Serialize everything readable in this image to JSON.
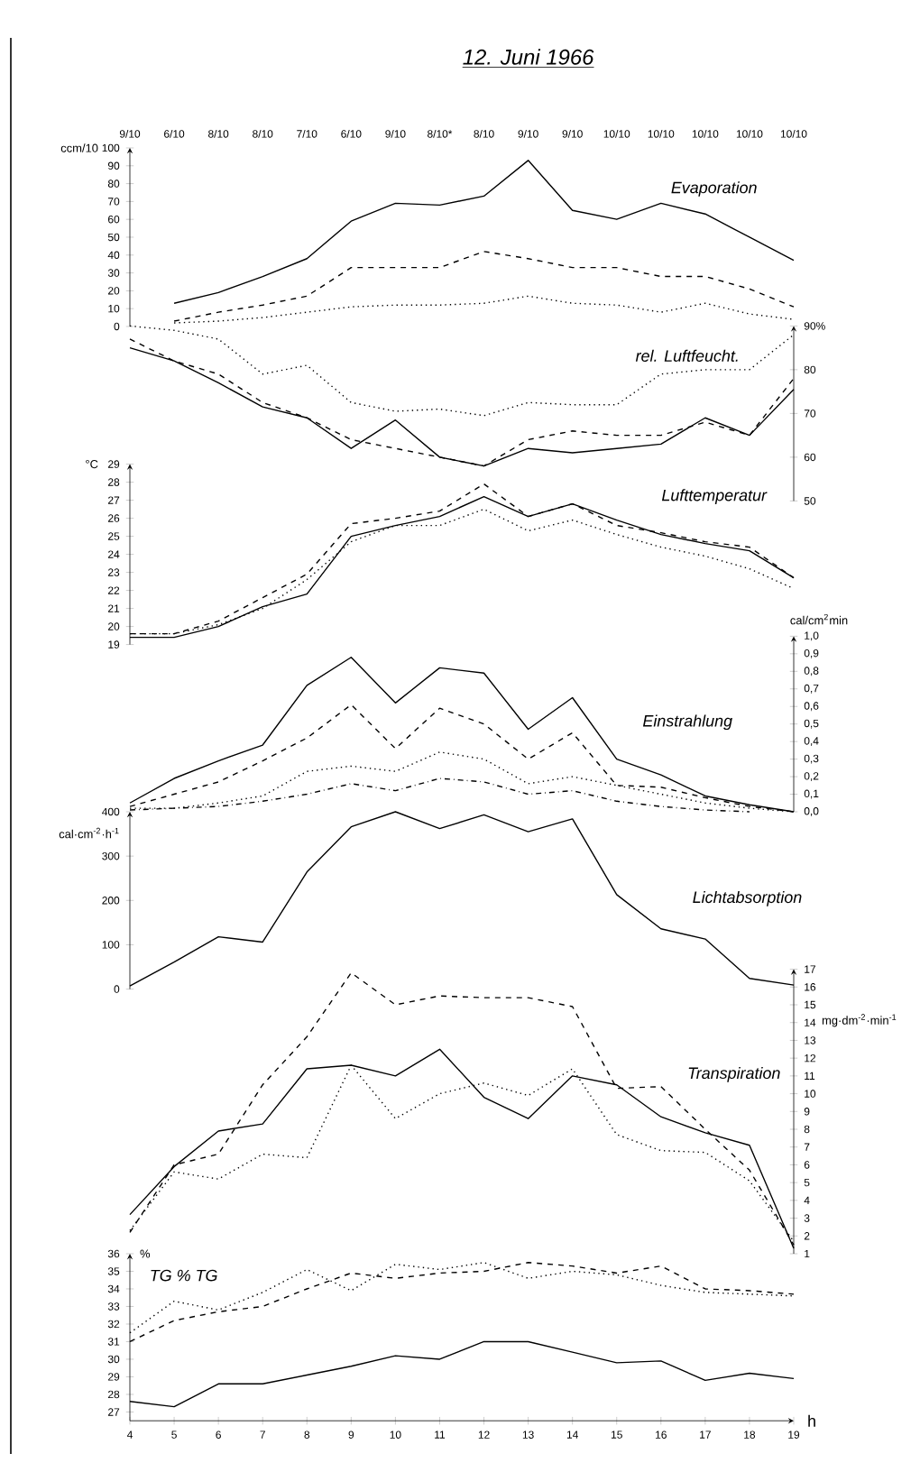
{
  "chart_data": [
    {
      "type": "line",
      "title": "12. Juni 1966",
      "subtitle": "Evaporation",
      "ylabel": "ccm/10",
      "categories": [
        "9/10",
        "6/10",
        "8/10",
        "8/10",
        "7/10",
        "6/10",
        "9/10",
        "8/10*",
        "8/10",
        "9/10",
        "9/10",
        "10/10",
        "10/10",
        "10/10",
        "10/10",
        "10/10"
      ],
      "ylim": [
        0,
        100
      ],
      "yticks": [
        0,
        10,
        20,
        30,
        40,
        50,
        60,
        70,
        80,
        90,
        100
      ],
      "series": [
        {
          "color": "#000000",
          "line_style": "solid",
          "values": [
            null,
            13,
            19,
            28,
            38,
            59,
            69,
            68,
            73,
            93,
            65,
            60,
            69,
            63,
            50,
            37
          ]
        },
        {
          "color": "#000000",
          "line_style": "dashed",
          "values": [
            null,
            3,
            8,
            12,
            17,
            33,
            33,
            33,
            42,
            38,
            33,
            33,
            28,
            28,
            21,
            11
          ]
        },
        {
          "color": "#000000",
          "line_style": "dotted",
          "values": [
            null,
            2,
            3,
            5,
            8,
            11,
            12,
            12,
            13,
            17,
            13,
            12,
            8,
            13,
            7,
            4
          ]
        }
      ]
    },
    {
      "type": "line",
      "title": "rel. Luftfeucht.",
      "x": [
        4,
        5,
        6,
        7,
        8,
        9,
        10,
        11,
        12,
        13,
        14,
        15,
        16,
        17,
        18,
        19
      ],
      "xlim": [
        4,
        19
      ],
      "tick_labels": "y",
      "y2lim": [
        50,
        90
      ],
      "y2ticks": [
        50,
        60,
        70,
        80,
        {
          "value": 90,
          "label": "90%"
        }
      ],
      "series": [
        {
          "color": "#000000",
          "line_style": "dotted",
          "axis": "y2",
          "values": [
            90,
            89,
            87,
            79,
            81,
            72.5,
            70.5,
            71,
            69.5,
            72.5,
            72,
            72,
            79,
            80,
            80,
            88
          ]
        },
        {
          "color": "#000000",
          "line_style": "solid",
          "axis": "y2",
          "values": [
            85,
            82,
            77,
            71.5,
            69,
            62,
            68.5,
            60,
            58,
            62,
            61,
            62,
            63,
            69,
            65,
            75.5
          ]
        },
        {
          "color": "#000000",
          "line_style": "dashed",
          "axis": "y2",
          "values": [
            87,
            82,
            79,
            72.5,
            69,
            64,
            62,
            60,
            58,
            64,
            66,
            65,
            65,
            68,
            65,
            78
          ]
        }
      ]
    },
    {
      "type": "line",
      "title": "Lufttemperatur",
      "ylabel": "°C",
      "x": [
        4,
        5,
        6,
        7,
        8,
        9,
        10,
        11,
        12,
        13,
        14,
        15,
        16,
        17,
        18,
        19
      ],
      "xlim": [
        4,
        19
      ],
      "tick_labels": "y",
      "ylim": [
        19,
        29
      ],
      "yticks": [
        19,
        20,
        21,
        22,
        23,
        24,
        25,
        26,
        27,
        28,
        29
      ],
      "series": [
        {
          "color": "#000000",
          "line_style": "solid",
          "values": [
            19.4,
            19.4,
            20,
            21.1,
            21.8,
            25,
            25.6,
            26.1,
            27.2,
            26.1,
            26.8,
            25.9,
            25.1,
            24.6,
            24.2,
            22.7
          ]
        },
        {
          "color": "#000000",
          "line_style": "dashed",
          "values": [
            19.6,
            19.6,
            20.3,
            21.6,
            22.9,
            25.7,
            26,
            26.4,
            27.9,
            26.1,
            26.8,
            25.6,
            25.2,
            24.7,
            24.4,
            22.7
          ]
        },
        {
          "color": "#000000",
          "line_style": "dotted",
          "values": [
            19.6,
            19.6,
            20.1,
            21,
            22.6,
            24.7,
            25.6,
            25.6,
            26.5,
            25.3,
            25.9,
            25.1,
            24.4,
            23.9,
            23.2,
            22.1
          ]
        }
      ]
    },
    {
      "type": "line",
      "title": "Einstrahlung",
      "y2label": "cal/cm$^{2}$min",
      "x": [
        4,
        5,
        6,
        7,
        8,
        9,
        10,
        11,
        12,
        13,
        14,
        15,
        16,
        17,
        18,
        19
      ],
      "xlim": [
        4,
        19
      ],
      "tick_labels": "y",
      "y2lim": [
        0,
        1
      ],
      "y2ticks": [
        {
          "value": 0,
          "label": "0,0"
        },
        {
          "value": 0.1,
          "label": "0,1"
        },
        {
          "value": 0.2,
          "label": "0,2"
        },
        {
          "value": 0.3,
          "label": "0,3"
        },
        {
          "value": 0.4,
          "label": "0,4"
        },
        {
          "value": 0.5,
          "label": "0,5"
        },
        {
          "value": 0.6,
          "label": "0,6"
        },
        {
          "value": 0.7,
          "label": "0,7"
        },
        {
          "value": 0.8,
          "label": "0,8"
        },
        {
          "value": 0.9,
          "label": "0,9"
        },
        {
          "value": 1,
          "label": "1,0"
        }
      ],
      "series": [
        {
          "color": "#000000",
          "line_style": "solid",
          "axis": "y2",
          "values": [
            0.05,
            0.19,
            0.29,
            0.38,
            0.72,
            0.88,
            0.62,
            0.82,
            0.79,
            0.47,
            0.65,
            0.3,
            0.21,
            0.09,
            0.04,
            0
          ]
        },
        {
          "color": "#000000",
          "line_style": "dashed",
          "axis": "y2",
          "values": [
            0.03,
            0.1,
            0.17,
            0.29,
            0.42,
            0.61,
            0.36,
            0.59,
            0.5,
            0.3,
            0.45,
            0.15,
            0.14,
            0.08,
            0.03,
            0
          ]
        },
        {
          "color": "#000000",
          "line_style": "dotted",
          "axis": "y2",
          "values": [
            0.02,
            0.02,
            0.05,
            0.09,
            0.23,
            0.26,
            0.23,
            0.34,
            0.3,
            0.16,
            0.2,
            0.15,
            0.1,
            0.05,
            0.02,
            0
          ]
        },
        {
          "color": "#000000",
          "line_style": "dashdot",
          "axis": "y2",
          "values": [
            0.01,
            0.02,
            0.03,
            0.06,
            0.1,
            0.16,
            0.12,
            0.19,
            0.17,
            0.1,
            0.12,
            0.06,
            0.03,
            0.01,
            0,
            null
          ]
        }
      ]
    },
    {
      "type": "line",
      "title": "Lichtabsorption",
      "ylabel": "cal·cm$^{-2}$·h$^{-1}$",
      "x": [
        4,
        5,
        6,
        7,
        8,
        9,
        10,
        11,
        12,
        13,
        14,
        15,
        16,
        17,
        18,
        19
      ],
      "xlim": [
        4,
        19
      ],
      "tick_labels": "y",
      "ylim": [
        0,
        400
      ],
      "yticks": [
        0,
        100,
        200,
        300,
        400
      ],
      "series": [
        {
          "color": "#000000",
          "line_style": "solid",
          "values": [
            7,
            61,
            118,
            106,
            264,
            366,
            400,
            362,
            393,
            355,
            384,
            213,
            136,
            113,
            24,
            9
          ]
        }
      ]
    },
    {
      "type": "line",
      "title": "Transpiration",
      "y2label": "mg·dm$^{-2}$·min$^{-1}$",
      "x": [
        4,
        5,
        6,
        7,
        8,
        9,
        10,
        11,
        12,
        13,
        14,
        15,
        16,
        17,
        18,
        19
      ],
      "xlim": [
        4,
        19
      ],
      "tick_labels": "y",
      "y2lim": [
        1,
        17
      ],
      "y2ticks": [
        1,
        2,
        3,
        4,
        5,
        6,
        7,
        8,
        9,
        10,
        11,
        12,
        13,
        14,
        15,
        16,
        17
      ],
      "series": [
        {
          "color": "#000000",
          "line_style": "solid",
          "axis": "y2",
          "values": [
            3.2,
            5.9,
            7.9,
            8.3,
            11.4,
            11.6,
            11,
            12.5,
            9.8,
            8.6,
            11,
            10.5,
            8.7,
            7.8,
            7.1,
            1.3
          ]
        },
        {
          "color": "#000000",
          "line_style": "dashed",
          "axis": "y2",
          "values": [
            2.2,
            6,
            6.6,
            10.5,
            13.2,
            16.8,
            15,
            15.5,
            15.4,
            15.4,
            14.9,
            10.3,
            10.4,
            8,
            5.7,
            1.5
          ]
        },
        {
          "color": "#000000",
          "line_style": "dotted",
          "axis": "y2",
          "values": [
            2.3,
            5.6,
            5.2,
            6.6,
            6.4,
            11.6,
            8.6,
            10,
            10.6,
            9.9,
            11.4,
            7.7,
            6.8,
            6.7,
            5.1,
            1.7
          ]
        }
      ]
    },
    {
      "type": "line",
      "title": "TG % TG",
      "ylabel": "%",
      "xlabel": "h",
      "x": [
        4,
        5,
        6,
        7,
        8,
        9,
        10,
        11,
        12,
        13,
        14,
        15,
        16,
        17,
        18,
        19
      ],
      "xlim": [
        4,
        19
      ],
      "xticks": [
        4,
        5,
        6,
        7,
        8,
        9,
        10,
        11,
        12,
        13,
        14,
        15,
        16,
        17,
        18,
        19
      ],
      "ylim": [
        26.5,
        36
      ],
      "yticks": [
        27,
        28,
        29,
        30,
        31,
        32,
        33,
        34,
        35,
        36
      ],
      "series": [
        {
          "color": "#000000",
          "line_style": "solid",
          "values": [
            27.6,
            27.3,
            28.6,
            28.6,
            29.1,
            29.6,
            30.2,
            30,
            31,
            31,
            30.4,
            29.8,
            29.9,
            28.8,
            29.2,
            28.9
          ]
        },
        {
          "color": "#000000",
          "line_style": "dashed",
          "values": [
            31,
            32.2,
            32.7,
            33,
            34,
            34.9,
            34.6,
            34.9,
            35,
            35.5,
            35.3,
            34.9,
            35.3,
            34,
            33.9,
            33.7
          ]
        },
        {
          "color": "#000000",
          "line_style": "dotted",
          "values": [
            31.5,
            33.3,
            32.8,
            33.8,
            35.1,
            33.9,
            35.4,
            35.1,
            35.5,
            34.6,
            35,
            34.8,
            34.2,
            33.8,
            33.7,
            33.6
          ]
        }
      ]
    }
  ]
}
